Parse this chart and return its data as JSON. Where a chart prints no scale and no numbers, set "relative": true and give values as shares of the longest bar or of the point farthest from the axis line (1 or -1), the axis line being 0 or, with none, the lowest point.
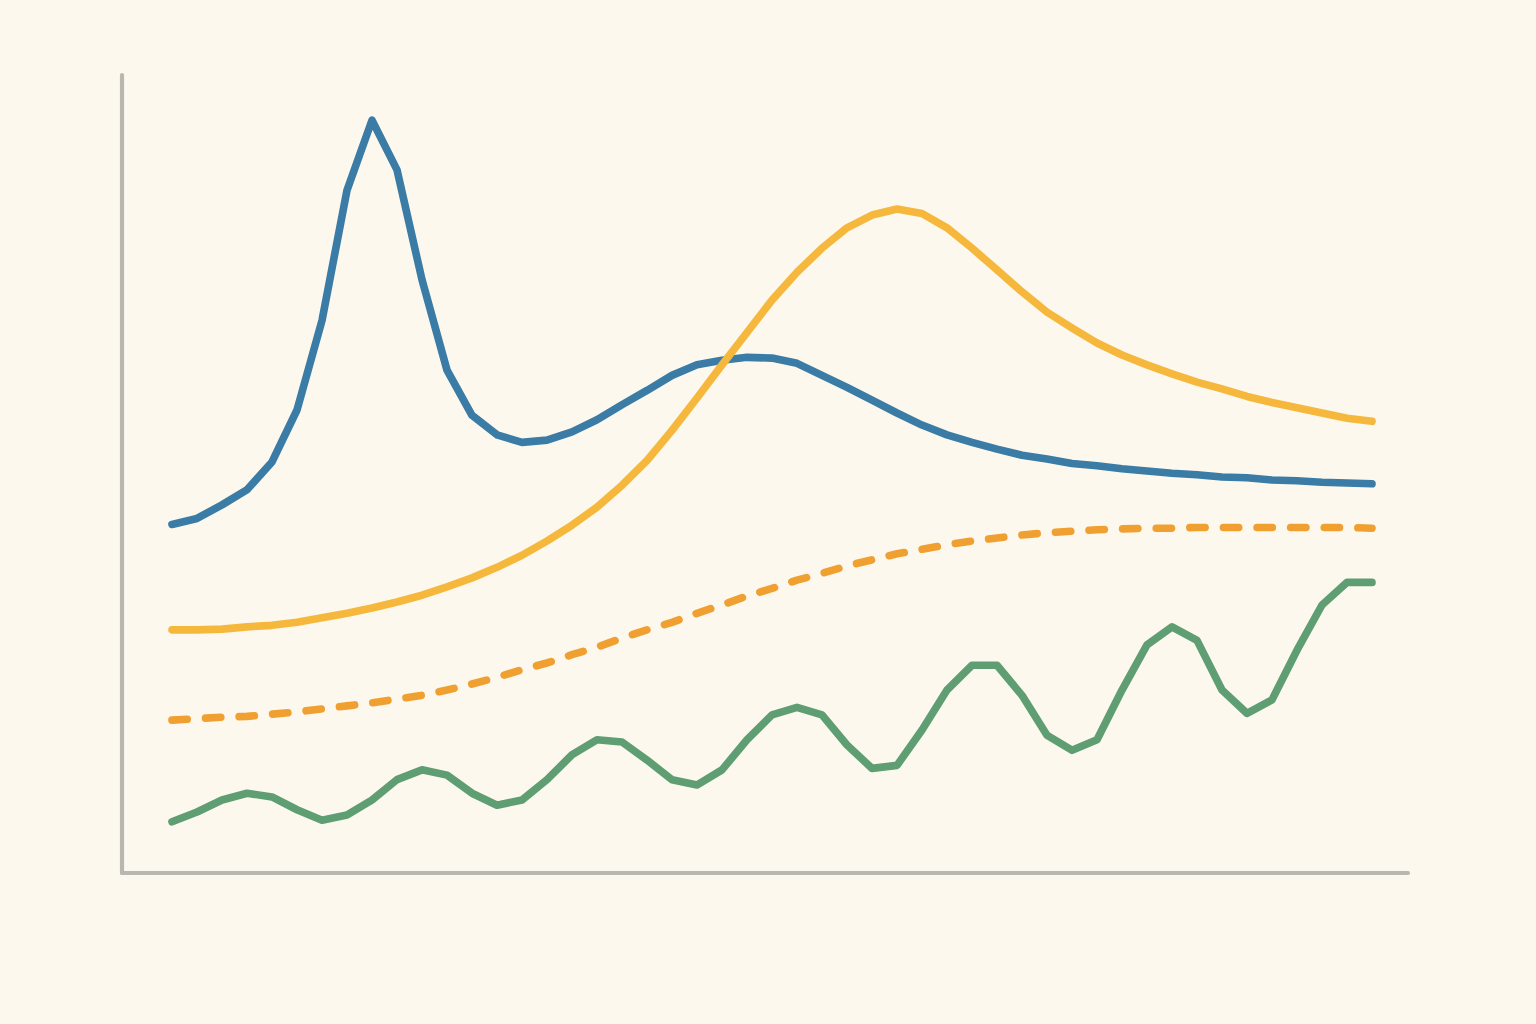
{
  "chart_data": {
    "type": "line",
    "relative": true,
    "grid": false,
    "categories": [
      null,
      null,
      null,
      null,
      null,
      null,
      null,
      null,
      null,
      null,
      null,
      null,
      null,
      null,
      null,
      null,
      null,
      null,
      null,
      null,
      null,
      null,
      null,
      null,
      null,
      null,
      null,
      null,
      null,
      null,
      null,
      null,
      null,
      null,
      null,
      null,
      null,
      null,
      null,
      null,
      null,
      null,
      null,
      null,
      null,
      null,
      null,
      null,
      null
    ],
    "series": [
      {
        "color": "#3a7ca5",
        "line_style": "solid",
        "values": [
          0.463,
          0.471,
          0.489,
          0.509,
          0.546,
          0.615,
          0.734,
          0.907,
          1,
          0.934,
          0.788,
          0.668,
          0.608,
          0.582,
          0.572,
          0.575,
          0.586,
          0.602,
          0.622,
          0.641,
          0.661,
          0.675,
          0.681,
          0.685,
          0.684,
          0.677,
          0.661,
          0.645,
          0.628,
          0.611,
          0.595,
          0.582,
          0.572,
          0.563,
          0.555,
          0.55,
          0.544,
          0.541,
          0.537,
          0.534,
          0.531,
          0.529,
          0.526,
          0.525,
          0.522,
          0.521,
          0.519,
          0.518,
          0.517
        ]
      },
      {
        "color": "#f5b83d",
        "line_style": "solid",
        "values": [
          0.323,
          0.323,
          0.324,
          0.327,
          0.329,
          0.333,
          0.339,
          0.345,
          0.352,
          0.36,
          0.369,
          0.38,
          0.392,
          0.406,
          0.422,
          0.441,
          0.462,
          0.486,
          0.515,
          0.548,
          0.588,
          0.631,
          0.675,
          0.718,
          0.761,
          0.798,
          0.83,
          0.857,
          0.874,
          0.882,
          0.876,
          0.857,
          0.83,
          0.801,
          0.772,
          0.745,
          0.724,
          0.704,
          0.688,
          0.675,
          0.663,
          0.652,
          0.643,
          0.633,
          0.625,
          0.618,
          0.611,
          0.604,
          0.6
        ]
      },
      {
        "color": "#f0a030",
        "line_style": "dashed",
        "values": [
          0.203,
          0.205,
          0.207,
          0.208,
          0.211,
          0.214,
          0.218,
          0.222,
          0.226,
          0.231,
          0.236,
          0.243,
          0.251,
          0.26,
          0.27,
          0.279,
          0.29,
          0.3,
          0.312,
          0.323,
          0.333,
          0.345,
          0.356,
          0.368,
          0.378,
          0.389,
          0.398,
          0.408,
          0.416,
          0.424,
          0.43,
          0.436,
          0.441,
          0.445,
          0.449,
          0.452,
          0.454,
          0.456,
          0.457,
          0.458,
          0.458,
          0.459,
          0.459,
          0.459,
          0.459,
          0.459,
          0.459,
          0.459,
          0.458
        ]
      },
      {
        "color": "#5f9e72",
        "line_style": "solid",
        "values": [
          0.068,
          0.081,
          0.097,
          0.106,
          0.101,
          0.084,
          0.07,
          0.077,
          0.097,
          0.124,
          0.137,
          0.13,
          0.106,
          0.09,
          0.097,
          0.124,
          0.157,
          0.177,
          0.174,
          0.15,
          0.124,
          0.117,
          0.137,
          0.177,
          0.21,
          0.22,
          0.21,
          0.17,
          0.139,
          0.143,
          0.19,
          0.243,
          0.276,
          0.276,
          0.236,
          0.183,
          0.163,
          0.177,
          0.243,
          0.303,
          0.327,
          0.309,
          0.243,
          0.212,
          0.23,
          0.296,
          0.356,
          0.386,
          0.386
        ]
      }
    ]
  }
}
